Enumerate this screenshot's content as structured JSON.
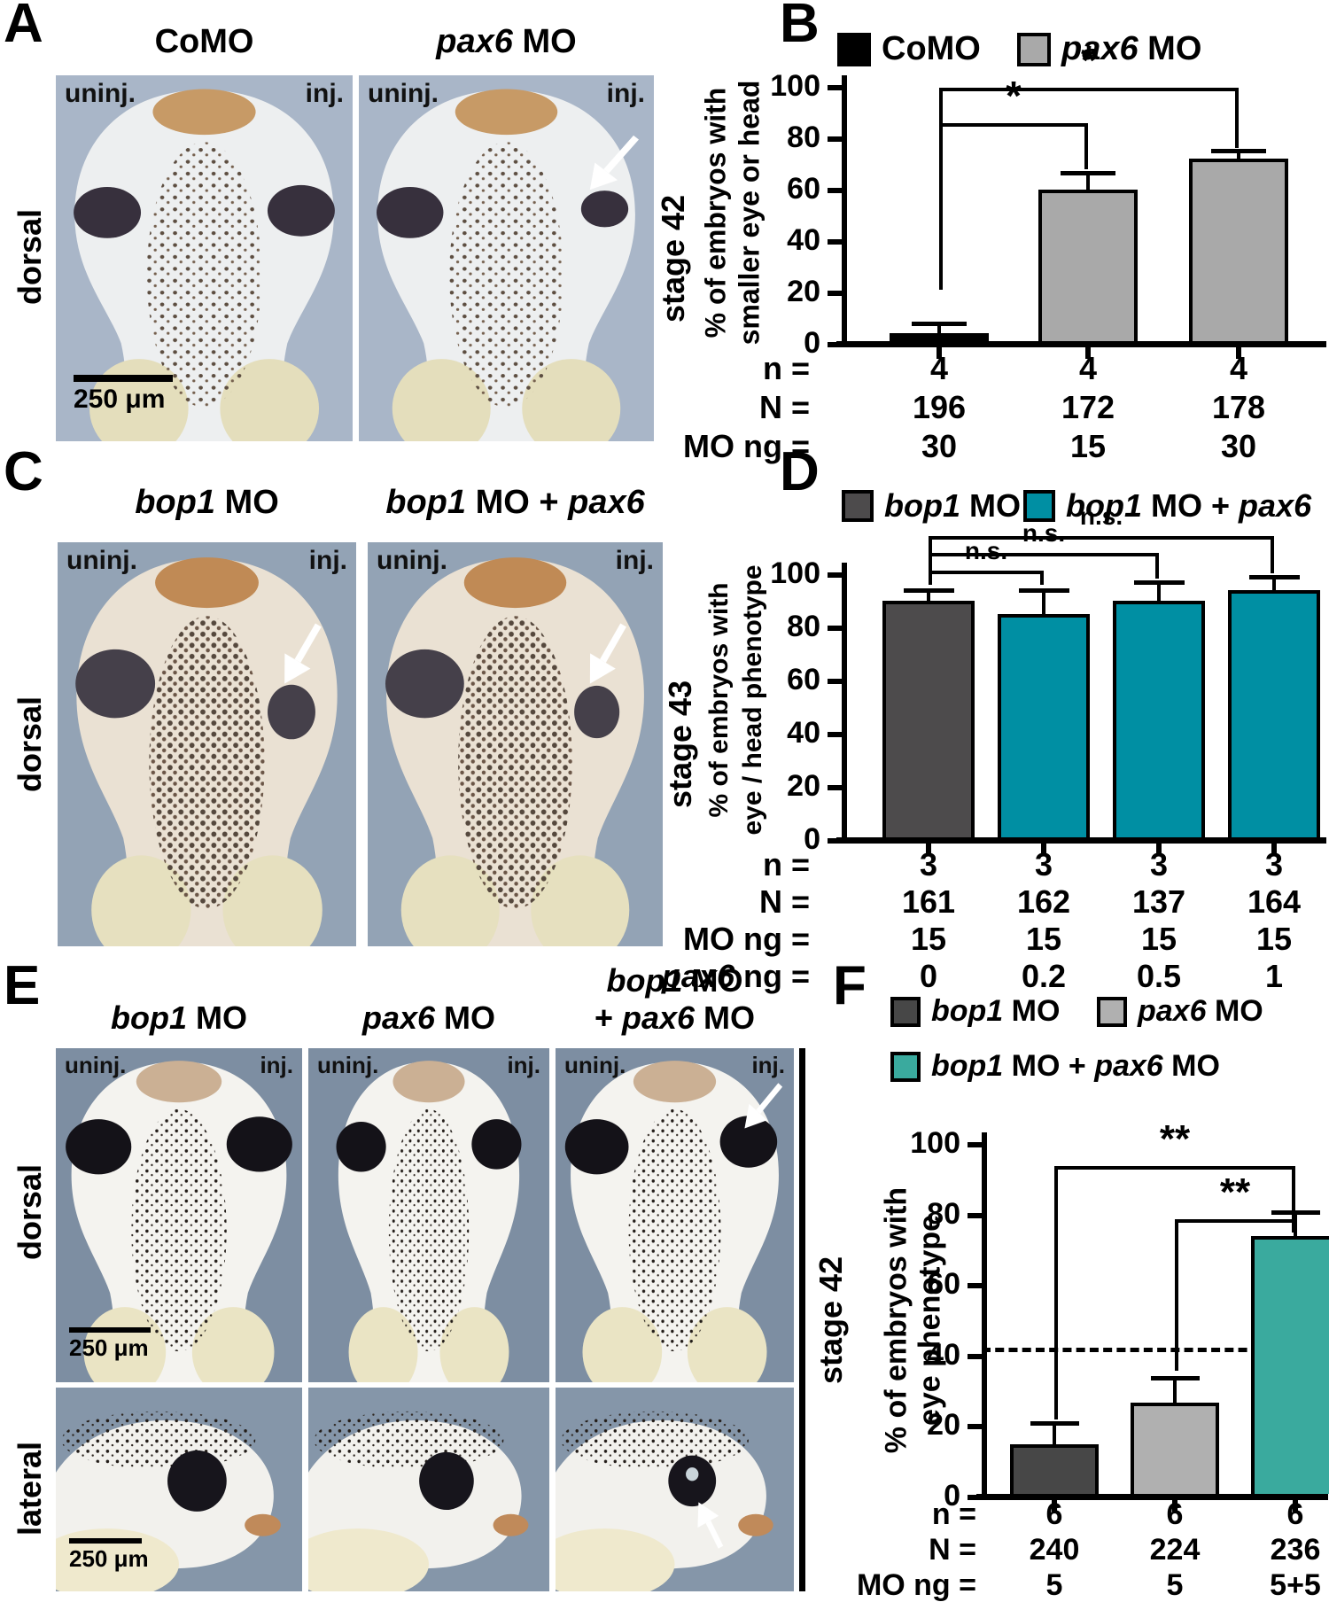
{
  "labels": {
    "uninj": "uninj.",
    "inj": "inj.",
    "scale": "250 μm"
  },
  "panels": {
    "a": {
      "letter": "A",
      "title1": [
        "CoMO"
      ],
      "title2": [
        "i:pax6",
        " MO"
      ],
      "view": "dorsal",
      "stage": "stage 42"
    },
    "b": {
      "letter": "B"
    },
    "c": {
      "letter": "C",
      "title1": [
        "i:bop1",
        " MO"
      ],
      "title2": [
        "i:bop1",
        " MO + ",
        "i:pax6"
      ],
      "view": "dorsal",
      "stage": "stage 43"
    },
    "d": {
      "letter": "D"
    },
    "e": {
      "letter": "E",
      "title1": [
        "i:bop1",
        " MO"
      ],
      "title2": [
        "i:pax6",
        " MO"
      ],
      "title3_line1": [
        "i:bop1",
        " MO"
      ],
      "title3_line2": [
        "+ ",
        "i:pax6",
        " MO"
      ],
      "view_row1": "dorsal",
      "view_row2": "lateral",
      "stage": "stage 42"
    },
    "f": {
      "letter": "F"
    }
  },
  "chart_data": [
    {
      "id": "B",
      "type": "bar",
      "legend": [
        {
          "label": [
            "CoMO"
          ],
          "color": "#000000"
        },
        {
          "label": [
            "i:pax6",
            " MO"
          ],
          "color": "#a9a9a9"
        }
      ],
      "ylabel_lines": [
        "% of embryos with",
        "smaller eye or head"
      ],
      "ylim": [
        0,
        100
      ],
      "yticks": [
        0,
        20,
        40,
        60,
        80,
        100
      ],
      "bars": [
        {
          "value": 3,
          "error_top": 7,
          "color": "#000000"
        },
        {
          "value": 59,
          "error_top": 65.5,
          "color": "#a9a9a9"
        },
        {
          "value": 71,
          "error_top": 74,
          "color": "#a9a9a9"
        }
      ],
      "significance": [
        {
          "from": 0,
          "to": 1,
          "y": 85,
          "from_drop": 20,
          "to_drop": 67,
          "label": "*"
        },
        {
          "from": 0,
          "to": 2,
          "y": 98.5,
          "from_drop": 20,
          "to_drop": 75,
          "label": "*"
        }
      ],
      "footer_rows": [
        {
          "label": [
            "n ="
          ],
          "values": [
            "4",
            "4",
            "4"
          ]
        },
        {
          "label": [
            "N ="
          ],
          "values": [
            "196",
            "172",
            "178"
          ]
        },
        {
          "label": [
            "MO ng ="
          ],
          "values": [
            "30",
            "15",
            "30"
          ]
        }
      ],
      "stage": "stage 42"
    },
    {
      "id": "D",
      "type": "bar",
      "legend": [
        {
          "label": [
            "i:bop1",
            " MO"
          ],
          "color": "#4d4b4c"
        },
        {
          "label": [
            "i:bop1",
            " MO + ",
            "i:pax6"
          ],
          "color": "#008fa3"
        }
      ],
      "ylabel_lines": [
        "% of embryos with",
        "eye / head phenotype"
      ],
      "ylim": [
        0,
        100
      ],
      "yticks": [
        0,
        20,
        40,
        60,
        80,
        100
      ],
      "bars": [
        {
          "value": 89,
          "error_top": 93,
          "color": "#4d4b4c"
        },
        {
          "value": 84,
          "error_top": 93,
          "color": "#008fa3"
        },
        {
          "value": 89,
          "error_top": 96,
          "color": "#008fa3"
        },
        {
          "value": 93,
          "error_top": 98,
          "color": "#008fa3"
        }
      ],
      "significance": [
        {
          "from": 0,
          "to": 1,
          "y": 100.5,
          "from_drop": 95,
          "to_drop": 95,
          "label": "n.s."
        },
        {
          "from": 0,
          "to": 2,
          "y": 107,
          "from_drop": 95,
          "to_drop": 97.5,
          "label": "n.s."
        },
        {
          "from": 0,
          "to": 3,
          "y": 113.5,
          "from_drop": 95,
          "to_drop": 99.5,
          "label": "n.s."
        }
      ],
      "footer_rows": [
        {
          "label": [
            "n ="
          ],
          "values": [
            "3",
            "3",
            "3",
            "3"
          ]
        },
        {
          "label": [
            "N ="
          ],
          "values": [
            "161",
            "162",
            "137",
            "164"
          ]
        },
        {
          "label": [
            "MO ng ="
          ],
          "values": [
            "15",
            "15",
            "15",
            "15"
          ]
        },
        {
          "label": [
            "i:pax6",
            " ng ="
          ],
          "values": [
            "0",
            "0.2",
            "0.5",
            "1"
          ]
        }
      ],
      "stage": "stage 43"
    },
    {
      "id": "F",
      "type": "bar",
      "legend": [
        {
          "label": [
            "i:bop1",
            " MO"
          ],
          "color": "#474747"
        },
        {
          "label": [
            "i:pax6",
            " MO"
          ],
          "color": "#b0b0b0"
        },
        {
          "label": [
            "i:bop1",
            " MO + ",
            "i:pax6",
            " MO"
          ],
          "color": "#3aaa9e"
        }
      ],
      "ylabel_lines": [
        "% of embryos with",
        "eye phenotype"
      ],
      "ylim": [
        0,
        100
      ],
      "yticks": [
        0,
        20,
        40,
        60,
        80,
        100
      ],
      "dashed_line": 41,
      "bars": [
        {
          "value": 14,
          "error_top": 20,
          "color": "#474747"
        },
        {
          "value": 26,
          "error_top": 33,
          "color": "#b0b0b0"
        },
        {
          "value": 73,
          "error_top": 80,
          "color": "#3aaa9e"
        }
      ],
      "significance": [
        {
          "from": 0,
          "to": 2,
          "y": 93,
          "from_drop": 21,
          "to_drop": 76,
          "label": "**"
        },
        {
          "from": 1,
          "to": 2,
          "y": 78,
          "from_drop": 35,
          "to_drop": 74,
          "label": "**"
        }
      ],
      "footer_rows": [
        {
          "label": [
            "n ="
          ],
          "values": [
            "6",
            "6",
            "6"
          ]
        },
        {
          "label": [
            "N ="
          ],
          "values": [
            "240",
            "224",
            "236"
          ]
        },
        {
          "label": [
            "MO ng ="
          ],
          "values": [
            "5",
            "5",
            "5+5"
          ]
        }
      ],
      "stage": "stage 42"
    }
  ]
}
